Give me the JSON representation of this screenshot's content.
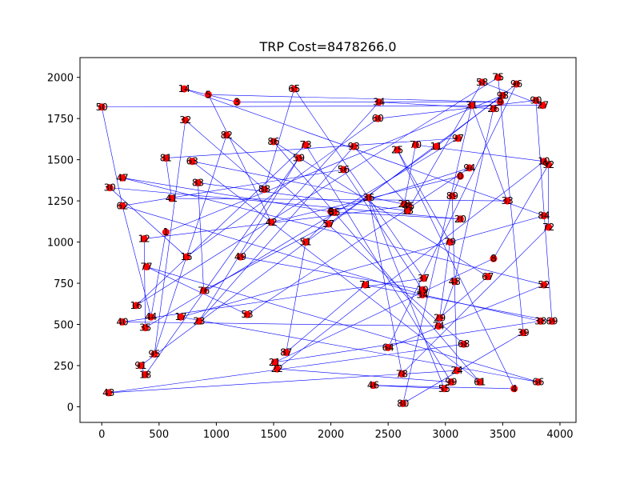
{
  "chart_data": {
    "type": "scatter",
    "title": "TRP Cost=8478266.0",
    "xlabel": "",
    "ylabel": "",
    "xlim": [
      -190,
      4140
    ],
    "ylim": [
      -95,
      2120
    ],
    "xticks": [
      0,
      500,
      1000,
      1500,
      2000,
      2500,
      3000,
      3500,
      4000
    ],
    "yticks": [
      0,
      250,
      500,
      750,
      1000,
      1250,
      1500,
      1750,
      2000
    ],
    "grid": false,
    "point_color": "#ff0000",
    "edge_color": "#0000ff",
    "points": [
      {
        "id": "1",
        "x": 560,
        "y": 1060
      },
      {
        "id": "3",
        "x": 1180,
        "y": 1850
      },
      {
        "id": "4",
        "x": 3600,
        "y": 110
      },
      {
        "id": "5",
        "x": 930,
        "y": 1895
      },
      {
        "id": "6",
        "x": 2000,
        "y": 1185
      },
      {
        "id": "0",
        "x": 3130,
        "y": 1400
      },
      {
        "id": "8",
        "x": 3420,
        "y": 900
      },
      {
        "id": "9",
        "x": 3480,
        "y": 1850
      },
      {
        "id": "10",
        "x": 3860,
        "y": 1490
      },
      {
        "id": "11",
        "x": 2920,
        "y": 1580
      },
      {
        "id": "12",
        "x": 370,
        "y": 1020
      },
      {
        "id": "13",
        "x": 2670,
        "y": 1190
      },
      {
        "id": "14",
        "x": 720,
        "y": 1930
      },
      {
        "id": "15",
        "x": 740,
        "y": 910
      },
      {
        "id": "16",
        "x": 300,
        "y": 615
      },
      {
        "id": "17",
        "x": 690,
        "y": 545
      },
      {
        "id": "18",
        "x": 380,
        "y": 195
      },
      {
        "id": "19",
        "x": 2800,
        "y": 710
      },
      {
        "id": "20",
        "x": 3130,
        "y": 1140
      },
      {
        "id": "21",
        "x": 1510,
        "y": 270
      },
      {
        "id": "22",
        "x": 1530,
        "y": 230
      },
      {
        "id": "23",
        "x": 850,
        "y": 520
      },
      {
        "id": "24",
        "x": 3100,
        "y": 220
      },
      {
        "id": "25",
        "x": 2580,
        "y": 1560
      },
      {
        "id": "26",
        "x": 3420,
        "y": 1810
      },
      {
        "id": "27",
        "x": 3850,
        "y": 1830
      },
      {
        "id": "28",
        "x": 2640,
        "y": 1230
      },
      {
        "id": "29",
        "x": 2950,
        "y": 540
      },
      {
        "id": "30",
        "x": 70,
        "y": 1330
      },
      {
        "id": "31",
        "x": 3230,
        "y": 1830
      },
      {
        "id": "32",
        "x": 730,
        "y": 1740
      },
      {
        "id": "33",
        "x": 3540,
        "y": 1250
      },
      {
        "id": "34",
        "x": 2420,
        "y": 1850
      },
      {
        "id": "35",
        "x": 380,
        "y": 480
      },
      {
        "id": "36",
        "x": 2330,
        "y": 1270
      },
      {
        "id": "37",
        "x": 2810,
        "y": 780
      },
      {
        "id": "38",
        "x": 3830,
        "y": 520
      },
      {
        "id": "39",
        "x": 3680,
        "y": 450
      },
      {
        "id": "40",
        "x": 180,
        "y": 515
      },
      {
        "id": "41",
        "x": 610,
        "y": 1265
      },
      {
        "id": "42",
        "x": 1480,
        "y": 1120
      },
      {
        "id": "43",
        "x": 60,
        "y": 85
      },
      {
        "id": "44",
        "x": 430,
        "y": 545
      },
      {
        "id": "45",
        "x": 2680,
        "y": 1220
      },
      {
        "id": "46",
        "x": 2370,
        "y": 130
      },
      {
        "id": "47",
        "x": 180,
        "y": 1390
      },
      {
        "id": "48",
        "x": 3080,
        "y": 760
      },
      {
        "id": "49",
        "x": 1210,
        "y": 910
      },
      {
        "id": "50",
        "x": 0,
        "y": 1820
      },
      {
        "id": "51",
        "x": 1780,
        "y": 1000
      },
      {
        "id": "52",
        "x": 3860,
        "y": 740
      },
      {
        "id": "53",
        "x": 1270,
        "y": 560
      },
      {
        "id": "54",
        "x": 2800,
        "y": 680
      },
      {
        "id": "55",
        "x": 2990,
        "y": 110
      },
      {
        "id": "56",
        "x": 2110,
        "y": 1440
      },
      {
        "id": "57",
        "x": 1980,
        "y": 1110
      },
      {
        "id": "58",
        "x": 3320,
        "y": 1970
      },
      {
        "id": "59",
        "x": 1720,
        "y": 1510
      },
      {
        "id": "60",
        "x": 2410,
        "y": 1750
      },
      {
        "id": "61",
        "x": 3300,
        "y": 150
      },
      {
        "id": "62",
        "x": 180,
        "y": 1220
      },
      {
        "id": "63",
        "x": 790,
        "y": 1490
      },
      {
        "id": "64",
        "x": 2500,
        "y": 360
      },
      {
        "id": "65",
        "x": 1680,
        "y": 1930
      },
      {
        "id": "66",
        "x": 3810,
        "y": 150
      },
      {
        "id": "67",
        "x": 3370,
        "y": 790
      },
      {
        "id": "68",
        "x": 3160,
        "y": 380
      },
      {
        "id": "69",
        "x": 3930,
        "y": 520
      },
      {
        "id": "70",
        "x": 2740,
        "y": 1590
      },
      {
        "id": "71",
        "x": 2300,
        "y": 740
      },
      {
        "id": "72",
        "x": 3900,
        "y": 1090
      },
      {
        "id": "73",
        "x": 1780,
        "y": 1590
      },
      {
        "id": "74",
        "x": 2940,
        "y": 490
      },
      {
        "id": "75",
        "x": 3460,
        "y": 2000
      },
      {
        "id": "76",
        "x": 890,
        "y": 705
      },
      {
        "id": "77",
        "x": 390,
        "y": 850
      },
      {
        "id": "78",
        "x": 2620,
        "y": 200
      },
      {
        "id": "79",
        "x": 3040,
        "y": 1000
      },
      {
        "id": "80",
        "x": 2630,
        "y": 20
      },
      {
        "id": "81",
        "x": 560,
        "y": 1510
      },
      {
        "id": "82",
        "x": 1090,
        "y": 1650
      },
      {
        "id": "83",
        "x": 840,
        "y": 1360
      },
      {
        "id": "84",
        "x": 3860,
        "y": 1160
      },
      {
        "id": "85",
        "x": 2030,
        "y": 1180
      },
      {
        "id": "86",
        "x": 1500,
        "y": 1610
      },
      {
        "id": "87",
        "x": 1610,
        "y": 330
      },
      {
        "id": "88",
        "x": 1420,
        "y": 1320
      },
      {
        "id": "89",
        "x": 3060,
        "y": 1280
      },
      {
        "id": "90",
        "x": 3790,
        "y": 1860
      },
      {
        "id": "91",
        "x": 340,
        "y": 250
      },
      {
        "id": "92",
        "x": 3900,
        "y": 1470
      },
      {
        "id": "93",
        "x": 2200,
        "y": 1580
      },
      {
        "id": "94",
        "x": 3210,
        "y": 1450
      },
      {
        "id": "95",
        "x": 460,
        "y": 320
      },
      {
        "id": "96",
        "x": 3620,
        "y": 1960
      },
      {
        "id": "97",
        "x": 3110,
        "y": 1630
      },
      {
        "id": "98",
        "x": 3500,
        "y": 1890
      },
      {
        "id": "99",
        "x": 3050,
        "y": 150
      }
    ],
    "route": [
      "50",
      "27",
      "58",
      "13",
      "83",
      "76",
      "57",
      "11",
      "96",
      "64",
      "52",
      "47",
      "85",
      "51",
      "87",
      "71",
      "69",
      "90",
      "60",
      "15",
      "30",
      "20",
      "6",
      "94",
      "53",
      "77",
      "66",
      "17",
      "84",
      "14",
      "3",
      "9",
      "5",
      "42",
      "0",
      "89",
      "24",
      "43",
      "68",
      "82",
      "95",
      "32",
      "88",
      "65",
      "37",
      "40",
      "74",
      "48",
      "26",
      "34",
      "49",
      "19",
      "56",
      "62",
      "44",
      "1",
      "98",
      "91",
      "18",
      "59",
      "23",
      "93",
      "45",
      "12",
      "35",
      "97",
      "81",
      "41",
      "33",
      "31",
      "80",
      "39",
      "75",
      "16",
      "73",
      "99",
      "22",
      "10",
      "70",
      "28",
      "63",
      "61",
      "86",
      "67",
      "29",
      "79",
      "25",
      "4",
      "46",
      "55",
      "36",
      "78",
      "72",
      "92",
      "8",
      "21",
      "38",
      "54",
      "62",
      "50"
    ]
  }
}
